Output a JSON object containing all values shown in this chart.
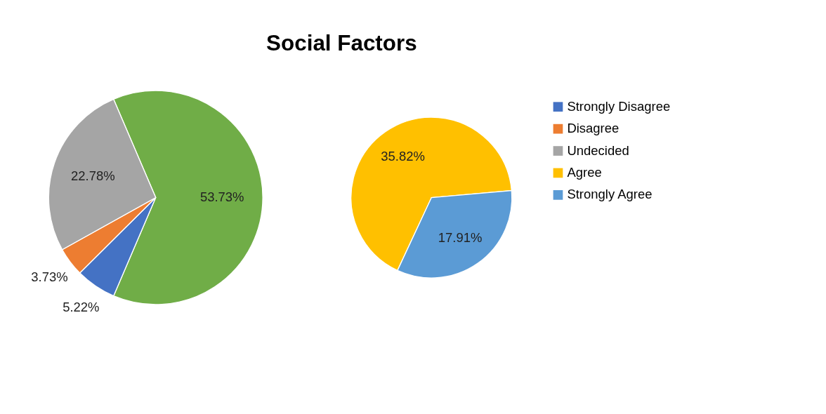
{
  "chart_data": [
    {
      "type": "pie",
      "title": "Social Factors",
      "categories": [
        null,
        "Strongly Disagree",
        "Disagree",
        "Undecided"
      ],
      "values": [
        53.73,
        5.22,
        3.73,
        22.78
      ],
      "colors": [
        "#70ad47",
        "#4472c4",
        "#ed7d31",
        "#a5a5a5"
      ],
      "value_labels": [
        "53.73%",
        "5.22%",
        "3.73%",
        "22.78%"
      ],
      "legend": "right"
    },
    {
      "type": "pie",
      "categories": [
        "Agree",
        "Strongly Agree"
      ],
      "values": [
        35.82,
        17.91
      ],
      "colors": [
        "#ffc000",
        "#5b9bd5"
      ],
      "value_labels": [
        "35.82%",
        "17.91%"
      ],
      "legend": "right"
    }
  ]
}
